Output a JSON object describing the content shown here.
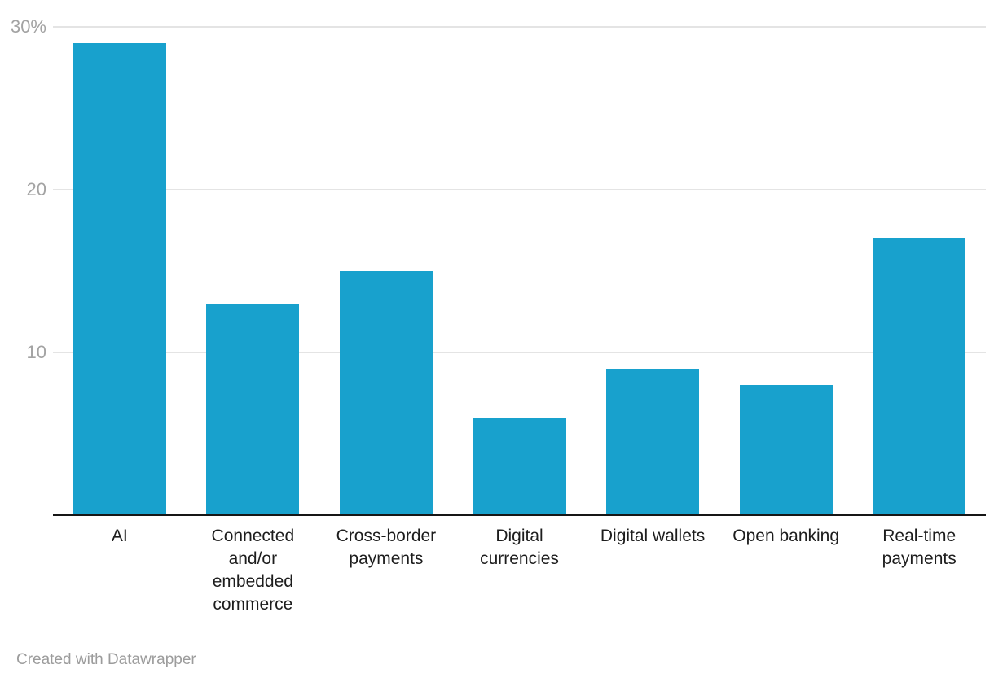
{
  "colors": {
    "bar": "#18a1cd",
    "gridline": "#e4e4e4",
    "axis_line": "#161616",
    "y_tick_label": "#a3a3a3",
    "x_label": "#1d1d1d",
    "footer": "#9c9c9c",
    "background": "#ffffff"
  },
  "footer": {
    "attribution": "Created with Datawrapper"
  },
  "chart_data": {
    "type": "bar",
    "title": "",
    "xlabel": "",
    "ylabel": "",
    "categories": [
      "AI",
      "Connected and/or embedded commerce",
      "Cross-border payments",
      "Digital currencies",
      "Digital wallets",
      "Open banking",
      "Real-time payments"
    ],
    "values": [
      29,
      13,
      15,
      6,
      9,
      8,
      17
    ],
    "unit": "%",
    "ylim": [
      0,
      30
    ],
    "yticks": [
      {
        "value": 10,
        "label": "10"
      },
      {
        "value": 20,
        "label": "20"
      },
      {
        "value": 30,
        "label": "30%"
      }
    ],
    "grid": true,
    "legend": "none"
  }
}
